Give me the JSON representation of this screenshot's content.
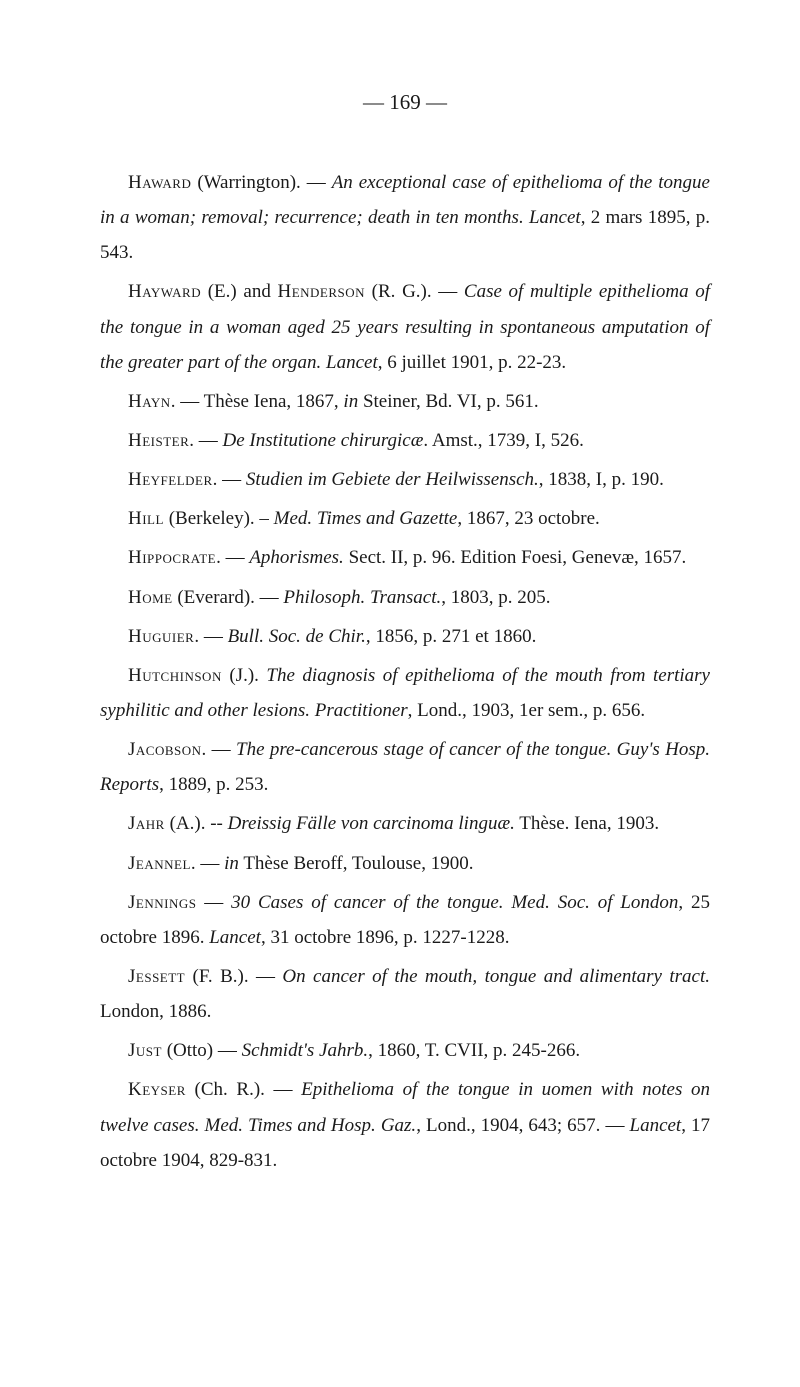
{
  "page": {
    "number": "— 169 —"
  },
  "entries": [
    {
      "author": "Haward",
      "text1": " (Warrington). — ",
      "italic1": "An exceptional case of epithelioma of the tongue in a woman; removal; recurrence; death in ten months. Lancet",
      "text2": ", 2 mars 1895, p. 543."
    },
    {
      "author": "Hayward",
      "text1": " (E.) and ",
      "author2": "Henderson",
      "text2": " (R. G.). — ",
      "italic1": "Case of multiple epithelioma of the tongue in a woman aged 25 years resulting in spontaneous amputation of the greater part of the organ. Lancet",
      "text3": ", 6 juillet 1901, p. 22-23."
    },
    {
      "author": "Hayn",
      "text1": ". — Thèse Iena, 1867, ",
      "italic1": "in",
      "text2": " Steiner, Bd. VI, p. 561."
    },
    {
      "author": "Heister",
      "text1": ". — ",
      "italic1": "De Institutione chirurgicæ",
      "text2": ". Amst., 1739, I, 526."
    },
    {
      "author": "Heyfelder",
      "text1": ". — ",
      "italic1": "Studien im Gebiete der Heilwissensch.",
      "text2": ", 1838, I, p. 190."
    },
    {
      "author": "Hill",
      "text1": " (Berkeley). – ",
      "italic1": "Med. Times and Gazette",
      "text2": ", 1867, 23 octobre."
    },
    {
      "author": "Hippocrate",
      "text1": ". — ",
      "italic1": "Aphorismes.",
      "text2": " Sect. II, p. 96. Edition Foesi, Genevæ, 1657."
    },
    {
      "author": "Home",
      "text1": " (Everard). — ",
      "italic1": "Philosoph. Transact.",
      "text2": ", 1803, p. 205."
    },
    {
      "author": "Huguier",
      "text1": ". — ",
      "italic1": "Bull. Soc. de Chir.",
      "text2": ", 1856, p. 271 et 1860."
    },
    {
      "author": "Hutchinson",
      "text1": " (J.). ",
      "italic1": "The diagnosis of epithelioma of the mouth from tertiary syphilitic and other lesions. Practitioner",
      "text2": ", Lond., 1903, 1er sem., p. 656."
    },
    {
      "author": "Jacobson",
      "text1": ". — ",
      "italic1": "The pre-cancerous stage of cancer of the tongue. Guy's Hosp. Reports",
      "text2": ", 1889, p. 253."
    },
    {
      "author": "Jahr",
      "text1": " (A.). -- ",
      "italic1": "Dreissig Fälle von carcinoma linguæ.",
      "text2": " Thèse. Iena, 1903."
    },
    {
      "author": "Jeannel",
      "text1": ". — ",
      "italic1": "in",
      "text2": " Thèse Beroff, Toulouse, 1900."
    },
    {
      "author": "Jennings",
      "text1": " — ",
      "italic1": "30 Cases of cancer of the tongue. Med. Soc. of London",
      "text2": ", 25 octobre 1896. ",
      "italic2": "Lancet",
      "text3": ", 31 octobre 1896, p. 1227-1228."
    },
    {
      "author": "Jessett",
      "text1": " (F. B.). — ",
      "italic1": "On cancer of the mouth, tongue and alimentary tract.",
      "text2": " London, 1886."
    },
    {
      "author": "Just",
      "text1": " (Otto) — ",
      "italic1": "Schmidt's Jahrb.",
      "text2": ", 1860, T. CVII, p. 245-266."
    },
    {
      "author": "Keyser",
      "text1": " (Ch. R.). — ",
      "italic1": "Epithelioma of the tongue in uomen with notes on twelve cases. Med. Times and Hosp. Gaz.",
      "text2": ", Lond., 1904, 643; 657. — ",
      "italic2": "Lancet",
      "text3": ", 17 octobre 1904, 829-831."
    }
  ]
}
